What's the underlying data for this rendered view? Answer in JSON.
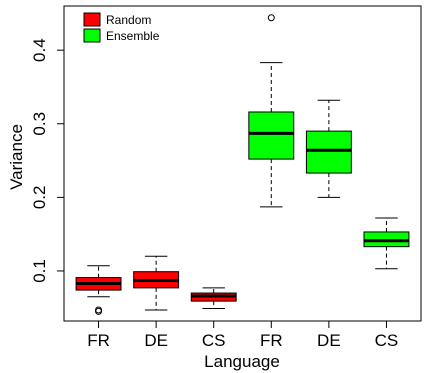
{
  "chart_data": {
    "type": "boxplot",
    "xlabel": "Language",
    "ylabel": "Variance",
    "ylim": [
      0.032,
      0.46
    ],
    "yticks": [
      0.1,
      0.2,
      0.3,
      0.4
    ],
    "ytick_labels": [
      "0.1",
      "0.2",
      "0.3",
      "0.4"
    ],
    "legend_position": "top-left",
    "series": [
      {
        "name": "Random",
        "color": "#ff0000"
      },
      {
        "name": "Ensemble",
        "color": "#00ff00"
      }
    ],
    "boxes": [
      {
        "label": "FR",
        "series": "Random",
        "whisker_low": 0.065,
        "q1": 0.074,
        "median": 0.083,
        "q3": 0.091,
        "whisker_high": 0.107,
        "outliers": [
          0.047,
          0.045
        ]
      },
      {
        "label": "DE",
        "series": "Random",
        "whisker_low": 0.047,
        "q1": 0.077,
        "median": 0.087,
        "q3": 0.099,
        "whisker_high": 0.12,
        "outliers": []
      },
      {
        "label": "CS",
        "series": "Random",
        "whisker_low": 0.049,
        "q1": 0.059,
        "median": 0.066,
        "q3": 0.07,
        "whisker_high": 0.077,
        "outliers": []
      },
      {
        "label": "FR",
        "series": "Ensemble",
        "whisker_low": 0.187,
        "q1": 0.252,
        "median": 0.287,
        "q3": 0.316,
        "whisker_high": 0.383,
        "outliers": [
          0.444
        ]
      },
      {
        "label": "DE",
        "series": "Ensemble",
        "whisker_low": 0.2,
        "q1": 0.233,
        "median": 0.264,
        "q3": 0.29,
        "whisker_high": 0.332,
        "outliers": []
      },
      {
        "label": "CS",
        "series": "Ensemble",
        "whisker_low": 0.103,
        "q1": 0.133,
        "median": 0.141,
        "q3": 0.153,
        "whisker_high": 0.172,
        "outliers": []
      }
    ]
  }
}
